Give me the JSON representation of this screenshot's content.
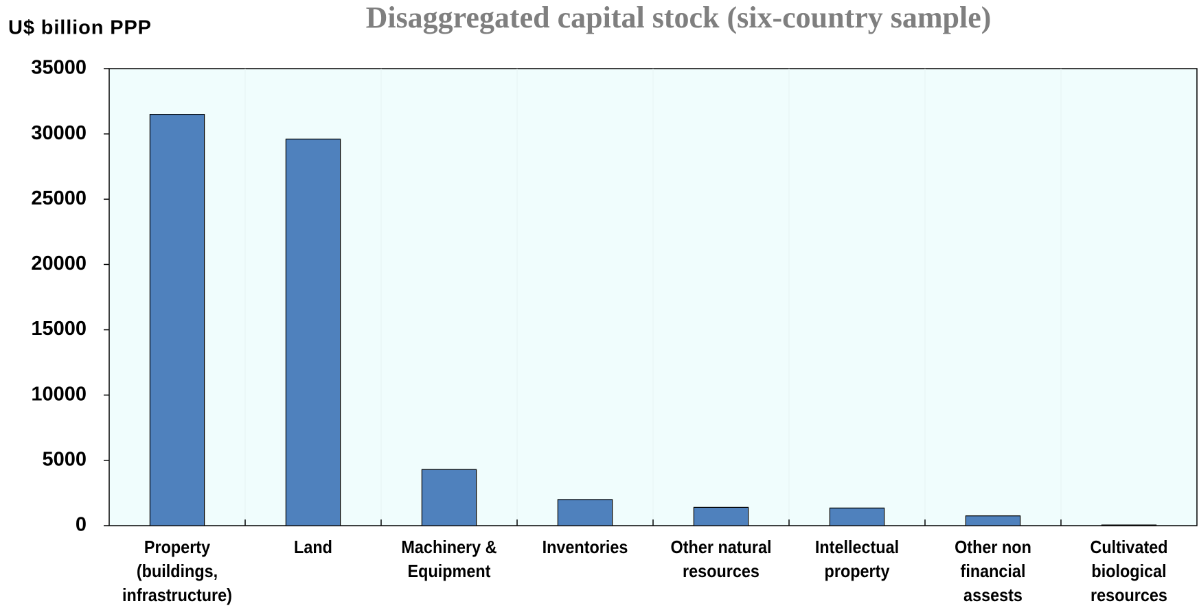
{
  "chart_data": {
    "type": "bar",
    "title": "Disaggregated capital stock (six-country sample)",
    "y_label": "U$ billion PPP",
    "categories": [
      "Property\n(buildings,\ninfrastructure)",
      "Land",
      "Machinery &\nEquipment",
      "Inventories",
      "Other natural\nresources",
      "Intellectual\nproperty",
      "Other non\nfinancial\nassests",
      "Cultivated\nbiological\nresources"
    ],
    "values": [
      31500,
      29600,
      4300,
      2000,
      1400,
      1350,
      750,
      50
    ],
    "color": "#4f81bd",
    "ylim": [
      0,
      35000
    ],
    "yticks": [
      0,
      5000,
      10000,
      15000,
      20000,
      25000,
      30000,
      35000
    ]
  }
}
